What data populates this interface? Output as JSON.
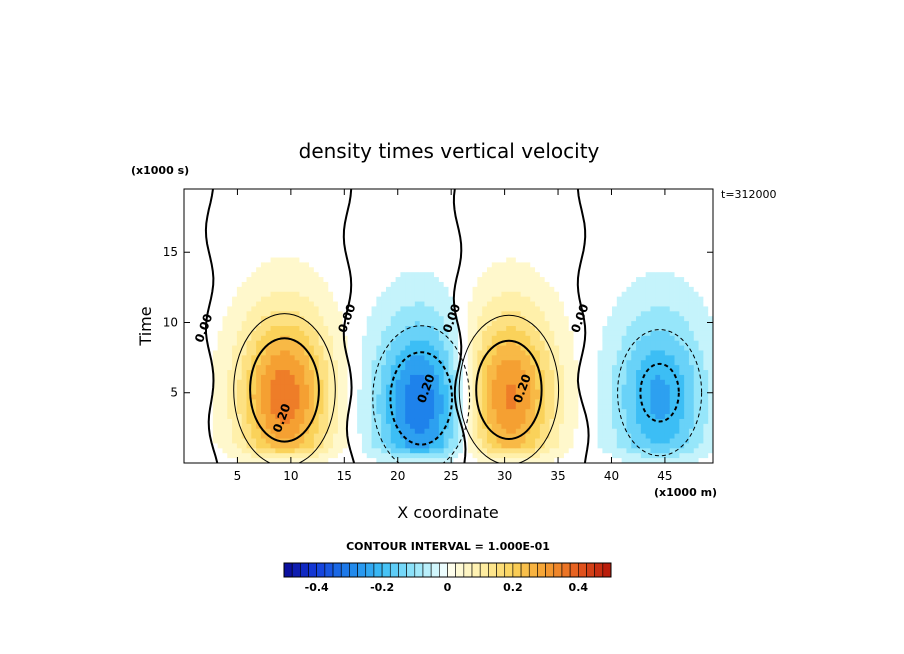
{
  "chart_data": {
    "type": "heatmap",
    "title": "density times vertical velocity",
    "xlabel": "X coordinate",
    "ylabel": "Time",
    "x_units": "(x1000 m)",
    "y_units": "(x1000 s)",
    "time_stamp": "t=312000",
    "xlim": [
      0,
      49.5
    ],
    "ylim": [
      0,
      19.5
    ],
    "x_ticks": [
      5,
      10,
      15,
      20,
      25,
      30,
      35,
      40,
      45
    ],
    "y_ticks": [
      5,
      10,
      15
    ],
    "contour_interval_text": "CONTOUR INTERVAL = 1.000E-01",
    "colorbar": {
      "min": -0.5,
      "max": 0.5,
      "ticks": [
        -0.4,
        -0.2,
        0,
        0.2,
        0.4
      ],
      "tick_labels": [
        "-0.4",
        "-0.2",
        "0",
        "0.2",
        "0.4"
      ]
    },
    "contour_labels": [
      {
        "text": "0.00",
        "x": 2.2,
        "y": 9.5
      },
      {
        "text": "0.00",
        "x": 15.6,
        "y": 10.2
      },
      {
        "text": "0.00",
        "x": 25.4,
        "y": 10.2
      },
      {
        "text": "0.00",
        "x": 37.4,
        "y": 10.2
      },
      {
        "text": "0.20",
        "x": 9.5,
        "y": 3.1
      },
      {
        "text": "0.20",
        "x": 23.0,
        "y": 5.2
      },
      {
        "text": "0.20",
        "x": 32.0,
        "y": 5.2
      }
    ],
    "features": [
      {
        "type": "max",
        "x": 9.4,
        "y": 4.8,
        "peak": 0.36
      },
      {
        "type": "min",
        "x": 22.2,
        "y": 4.2,
        "peak": -0.32
      },
      {
        "type": "max",
        "x": 30.4,
        "y": 4.8,
        "peak": 0.34
      },
      {
        "type": "min",
        "x": 44.5,
        "y": 4.6,
        "peak": -0.24
      }
    ]
  }
}
